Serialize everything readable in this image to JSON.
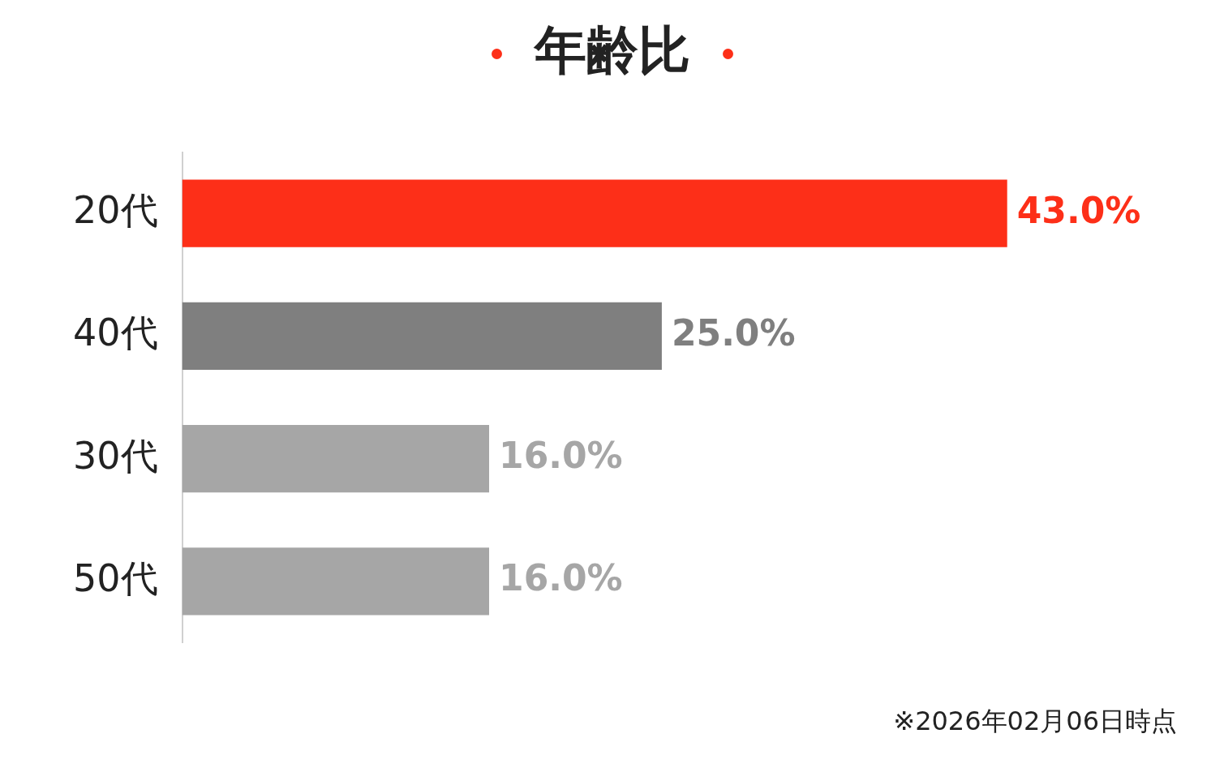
{
  "chart_data": {
    "type": "bar",
    "orientation": "horizontal",
    "title": "年齢比",
    "categories": [
      "20代",
      "40代",
      "30代",
      "50代"
    ],
    "values": [
      43,
      25,
      16,
      16
    ],
    "colors": [
      "#fd2f18",
      "#7f7f7f",
      "#a6a6a6",
      "#a6a6a6"
    ],
    "value_labels": [
      "43.0%",
      "25.0%",
      "16.0%",
      "16.0%"
    ],
    "annotations": [
      "※2026年02月06日時点"
    ],
    "legend": false
  }
}
